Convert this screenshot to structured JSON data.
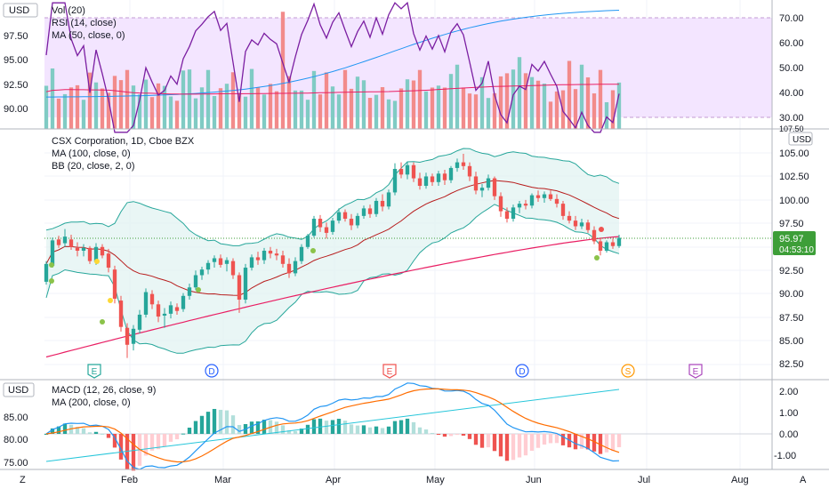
{
  "colors": {
    "up": "#26a69a",
    "down": "#ef5350",
    "bb": "#26a69a",
    "bb_fill": "#e0f2f1",
    "ma100": "#ef5350",
    "bb_mid": "#b71c1c",
    "rsi": "#7b1fa2",
    "rsi_band": "#f3e5ff",
    "vol_ma": "#2196f3",
    "macd": "#2196f3",
    "signal": "#ff6d00",
    "ma200": "#26c6da",
    "price_label": "#3d9e38"
  },
  "top_pane": {
    "currency": "USD",
    "legend": [
      "Vol (20)",
      "RSI (14, close)",
      "MA (50, close, 0)"
    ],
    "left_ticks": [
      "97.50",
      "95.00",
      "92.50",
      "90.00"
    ],
    "right_ticks": [
      "70.00",
      "60.00",
      "50.00",
      "40.00",
      "30.00"
    ],
    "partial_tick": "107.50"
  },
  "main_pane": {
    "title": "CSX Corporation, 1D, Cboe BZX",
    "legend": [
      "MA (100, close, 0)",
      "BB (20, close, 2, 0)"
    ],
    "currency": "USD",
    "right_ticks": [
      "105.00",
      "102.50",
      "100.00",
      "97.50",
      "95.00",
      "92.50",
      "90.00",
      "87.50",
      "85.00",
      "82.50"
    ],
    "last_price": "95.97",
    "countdown": "04:53:10",
    "event_markers": [
      {
        "letter": "E",
        "style": "earnings-green"
      },
      {
        "letter": "D",
        "style": "dividend"
      },
      {
        "letter": "E",
        "style": "earnings-red"
      },
      {
        "letter": "D",
        "style": "dividend"
      },
      {
        "letter": "S",
        "style": "split"
      },
      {
        "letter": "E",
        "style": "earnings-future"
      }
    ]
  },
  "bottom_pane": {
    "currency": "USD",
    "legend": [
      "MACD (12, 26, close, 9)",
      "MA (200, close, 0)"
    ],
    "left_ticks": [
      "85.00",
      "80.00",
      "75.00"
    ],
    "right_ticks": [
      "2.00",
      "1.00",
      "0.00",
      "-1.00"
    ]
  },
  "x_axis": {
    "labels": [
      "Feb",
      "Mar",
      "Apr",
      "May",
      "Jun",
      "Jul",
      "Aug"
    ],
    "left_corner": "Z",
    "right_corner": "A"
  },
  "chart_data": {
    "type": "candlestick",
    "price_range": [
      82.5,
      105
    ],
    "ohlc": [
      {
        "o": 91.3,
        "h": 93.5,
        "l": 91.0,
        "c": 93.2
      },
      {
        "o": 93.0,
        "h": 96.0,
        "l": 92.8,
        "c": 95.7
      },
      {
        "o": 95.8,
        "h": 96.2,
        "l": 94.9,
        "c": 95.2
      },
      {
        "o": 95.4,
        "h": 96.9,
        "l": 95.0,
        "c": 96.1
      },
      {
        "o": 95.8,
        "h": 96.3,
        "l": 94.7,
        "c": 95.0
      },
      {
        "o": 94.9,
        "h": 95.5,
        "l": 94.0,
        "c": 94.6
      },
      {
        "o": 94.6,
        "h": 95.3,
        "l": 94.0,
        "c": 94.9
      },
      {
        "o": 94.9,
        "h": 95.1,
        "l": 93.2,
        "c": 93.5
      },
      {
        "o": 93.4,
        "h": 95.4,
        "l": 93.1,
        "c": 95.0
      },
      {
        "o": 95.0,
        "h": 95.3,
        "l": 93.8,
        "c": 94.1
      },
      {
        "o": 94.3,
        "h": 94.8,
        "l": 92.3,
        "c": 92.8
      },
      {
        "o": 92.6,
        "h": 93.0,
        "l": 89.0,
        "c": 89.5
      },
      {
        "o": 89.3,
        "h": 89.8,
        "l": 86.0,
        "c": 86.5
      },
      {
        "o": 86.4,
        "h": 86.9,
        "l": 83.2,
        "c": 84.6
      },
      {
        "o": 84.7,
        "h": 86.7,
        "l": 84.0,
        "c": 86.3
      },
      {
        "o": 86.2,
        "h": 88.3,
        "l": 85.8,
        "c": 87.8
      },
      {
        "o": 87.8,
        "h": 90.6,
        "l": 87.5,
        "c": 90.2
      },
      {
        "o": 90.0,
        "h": 90.4,
        "l": 88.4,
        "c": 88.9
      },
      {
        "o": 88.9,
        "h": 89.3,
        "l": 87.0,
        "c": 87.6
      },
      {
        "o": 87.7,
        "h": 88.5,
        "l": 86.4,
        "c": 87.9
      },
      {
        "o": 87.9,
        "h": 89.2,
        "l": 87.4,
        "c": 88.8
      },
      {
        "o": 88.6,
        "h": 89.0,
        "l": 87.8,
        "c": 88.2
      },
      {
        "o": 88.4,
        "h": 90.1,
        "l": 88.1,
        "c": 89.8
      },
      {
        "o": 89.8,
        "h": 91.1,
        "l": 89.4,
        "c": 90.7
      },
      {
        "o": 90.7,
        "h": 92.5,
        "l": 90.4,
        "c": 92.0
      },
      {
        "o": 92.0,
        "h": 92.9,
        "l": 91.5,
        "c": 92.6
      },
      {
        "o": 92.6,
        "h": 93.6,
        "l": 92.1,
        "c": 93.3
      },
      {
        "o": 93.4,
        "h": 94.1,
        "l": 92.8,
        "c": 93.8
      },
      {
        "o": 93.8,
        "h": 94.2,
        "l": 92.8,
        "c": 93.1
      },
      {
        "o": 93.2,
        "h": 93.9,
        "l": 92.4,
        "c": 93.6
      },
      {
        "o": 93.5,
        "h": 93.8,
        "l": 91.6,
        "c": 92.0
      },
      {
        "o": 92.0,
        "h": 92.3,
        "l": 88.0,
        "c": 89.4
      },
      {
        "o": 89.4,
        "h": 93.2,
        "l": 89.0,
        "c": 92.8
      },
      {
        "o": 92.8,
        "h": 94.2,
        "l": 92.5,
        "c": 93.9
      },
      {
        "o": 93.9,
        "h": 94.5,
        "l": 93.1,
        "c": 93.6
      },
      {
        "o": 93.6,
        "h": 94.9,
        "l": 93.2,
        "c": 94.6
      },
      {
        "o": 94.6,
        "h": 95.0,
        "l": 93.8,
        "c": 94.3
      },
      {
        "o": 94.3,
        "h": 94.8,
        "l": 93.6,
        "c": 94.1
      },
      {
        "o": 94.1,
        "h": 94.6,
        "l": 92.8,
        "c": 93.2
      },
      {
        "o": 93.2,
        "h": 93.8,
        "l": 91.7,
        "c": 92.2
      },
      {
        "o": 92.2,
        "h": 93.9,
        "l": 91.9,
        "c": 93.5
      },
      {
        "o": 93.5,
        "h": 95.3,
        "l": 93.2,
        "c": 95.0
      },
      {
        "o": 95.0,
        "h": 96.4,
        "l": 94.8,
        "c": 96.2
      },
      {
        "o": 96.2,
        "h": 98.3,
        "l": 96.0,
        "c": 98.0
      },
      {
        "o": 98.0,
        "h": 98.4,
        "l": 96.6,
        "c": 97.1
      },
      {
        "o": 97.1,
        "h": 97.6,
        "l": 95.9,
        "c": 96.5
      },
      {
        "o": 96.6,
        "h": 98.1,
        "l": 96.3,
        "c": 97.8
      },
      {
        "o": 97.8,
        "h": 99.1,
        "l": 97.5,
        "c": 98.7
      },
      {
        "o": 98.7,
        "h": 99.0,
        "l": 97.7,
        "c": 98.0
      },
      {
        "o": 98.0,
        "h": 98.5,
        "l": 96.8,
        "c": 97.3
      },
      {
        "o": 97.3,
        "h": 98.6,
        "l": 97.0,
        "c": 98.3
      },
      {
        "o": 98.3,
        "h": 99.4,
        "l": 98.0,
        "c": 99.1
      },
      {
        "o": 99.1,
        "h": 99.5,
        "l": 98.1,
        "c": 98.5
      },
      {
        "o": 98.5,
        "h": 100.2,
        "l": 98.2,
        "c": 99.9
      },
      {
        "o": 99.9,
        "h": 100.6,
        "l": 98.8,
        "c": 99.3
      },
      {
        "o": 99.3,
        "h": 101.1,
        "l": 99.0,
        "c": 100.8
      },
      {
        "o": 100.8,
        "h": 103.9,
        "l": 100.5,
        "c": 103.3
      },
      {
        "o": 103.3,
        "h": 104.0,
        "l": 102.3,
        "c": 102.7
      },
      {
        "o": 102.7,
        "h": 104.1,
        "l": 102.2,
        "c": 103.7
      },
      {
        "o": 103.7,
        "h": 104.0,
        "l": 101.9,
        "c": 102.3
      },
      {
        "o": 102.3,
        "h": 102.9,
        "l": 101.1,
        "c": 101.5
      },
      {
        "o": 101.5,
        "h": 102.9,
        "l": 101.2,
        "c": 102.5
      },
      {
        "o": 102.5,
        "h": 102.8,
        "l": 101.5,
        "c": 101.9
      },
      {
        "o": 101.9,
        "h": 103.1,
        "l": 101.5,
        "c": 102.8
      },
      {
        "o": 102.8,
        "h": 103.2,
        "l": 101.6,
        "c": 102.1
      },
      {
        "o": 102.1,
        "h": 103.6,
        "l": 101.8,
        "c": 103.4
      },
      {
        "o": 103.4,
        "h": 104.4,
        "l": 103.0,
        "c": 104.0
      },
      {
        "o": 104.0,
        "h": 104.9,
        "l": 103.2,
        "c": 103.6
      },
      {
        "o": 103.6,
        "h": 104.0,
        "l": 102.0,
        "c": 102.5
      },
      {
        "o": 102.5,
        "h": 103.0,
        "l": 100.6,
        "c": 101.0
      },
      {
        "o": 101.0,
        "h": 101.7,
        "l": 100.3,
        "c": 101.3
      },
      {
        "o": 101.3,
        "h": 102.7,
        "l": 101.0,
        "c": 102.3
      },
      {
        "o": 102.3,
        "h": 102.5,
        "l": 100.0,
        "c": 100.4
      },
      {
        "o": 100.4,
        "h": 100.8,
        "l": 98.2,
        "c": 98.8
      },
      {
        "o": 98.8,
        "h": 99.2,
        "l": 97.6,
        "c": 98.0
      },
      {
        "o": 98.0,
        "h": 99.5,
        "l": 97.7,
        "c": 99.2
      },
      {
        "o": 99.2,
        "h": 99.9,
        "l": 98.6,
        "c": 99.6
      },
      {
        "o": 99.6,
        "h": 100.0,
        "l": 99.0,
        "c": 99.4
      },
      {
        "o": 99.4,
        "h": 100.7,
        "l": 99.1,
        "c": 100.5
      },
      {
        "o": 100.5,
        "h": 101.0,
        "l": 99.8,
        "c": 100.2
      },
      {
        "o": 100.2,
        "h": 100.9,
        "l": 99.7,
        "c": 100.6
      },
      {
        "o": 100.6,
        "h": 101.0,
        "l": 99.9,
        "c": 100.1
      },
      {
        "o": 100.1,
        "h": 100.6,
        "l": 99.2,
        "c": 99.6
      },
      {
        "o": 99.6,
        "h": 99.9,
        "l": 97.9,
        "c": 98.3
      },
      {
        "o": 98.3,
        "h": 98.8,
        "l": 97.5,
        "c": 97.8
      },
      {
        "o": 97.8,
        "h": 98.3,
        "l": 96.8,
        "c": 97.2
      },
      {
        "o": 97.2,
        "h": 98.0,
        "l": 96.9,
        "c": 97.6
      },
      {
        "o": 97.6,
        "h": 97.9,
        "l": 96.5,
        "c": 96.8
      },
      {
        "o": 96.8,
        "h": 97.2,
        "l": 95.3,
        "c": 95.6
      },
      {
        "o": 95.6,
        "h": 96.0,
        "l": 94.1,
        "c": 94.6
      },
      {
        "o": 94.6,
        "h": 95.7,
        "l": 94.4,
        "c": 95.5
      },
      {
        "o": 95.5,
        "h": 95.9,
        "l": 94.8,
        "c": 95.1
      },
      {
        "o": 95.1,
        "h": 96.3,
        "l": 94.9,
        "c": 95.97
      }
    ],
    "ma100": [
      83.3,
      96.1
    ],
    "macd_range": [
      -1.5,
      2.3
    ],
    "rsi_levels": [
      30,
      70
    ]
  }
}
